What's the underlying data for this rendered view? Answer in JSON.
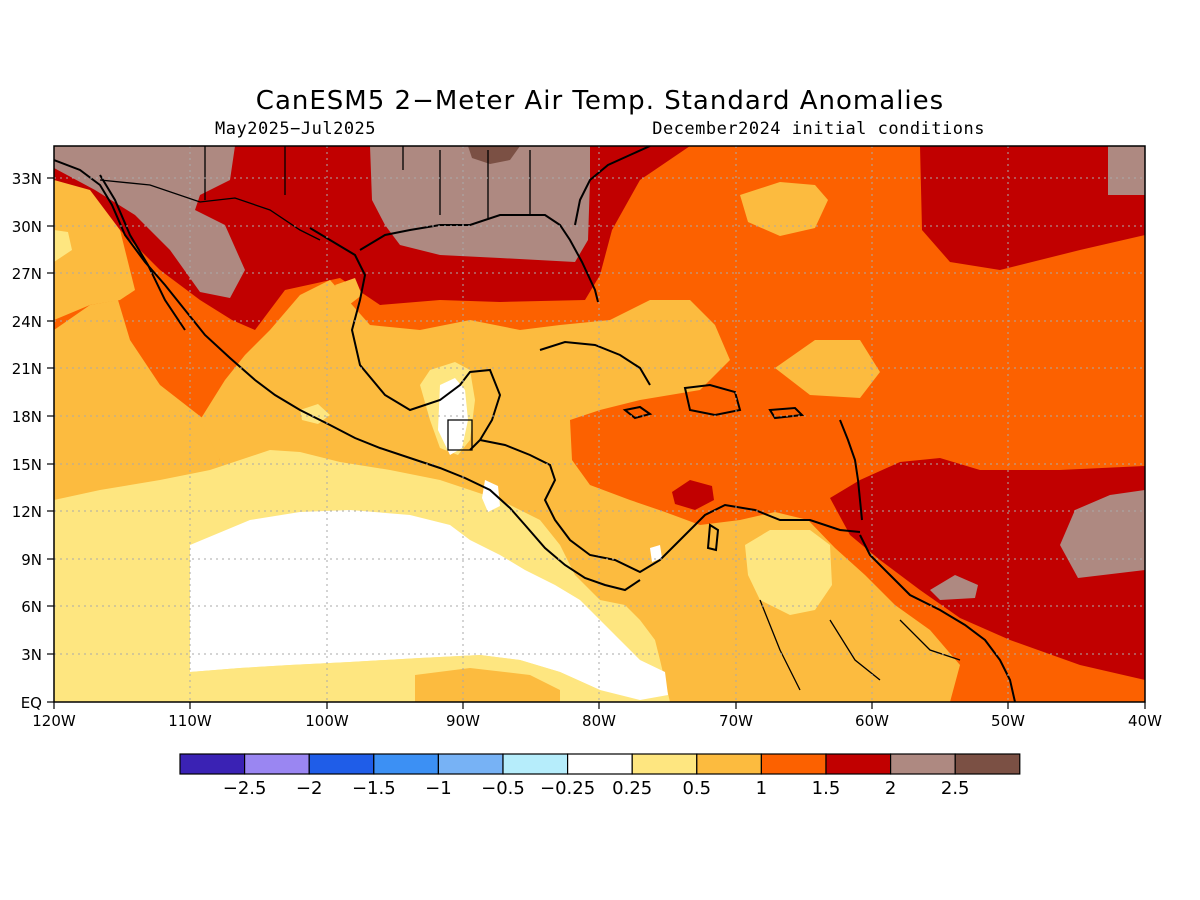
{
  "header": {
    "title": "CanESM5 2−Meter Air Temp. Standard Anomalies",
    "period": "May2025−Jul2025",
    "init": "December2024 initial conditions"
  },
  "map": {
    "lat_labels": [
      "33N",
      "30N",
      "27N",
      "24N",
      "21N",
      "18N",
      "15N",
      "12N",
      "9N",
      "6N",
      "3N",
      "EQ"
    ],
    "lon_labels": [
      "120W",
      "110W",
      "100W",
      "90W",
      "80W",
      "70W",
      "60W",
      "50W",
      "40W"
    ]
  },
  "legend": {
    "colors": [
      "#3a22b4",
      "#9a86f2",
      "#1f5de8",
      "#3c90f4",
      "#77b2f5",
      "#b6edfb",
      "#ffffff",
      "#fee680",
      "#fcbb3f",
      "#fc6100",
      "#c10000",
      "#ae8981",
      "#7b5044"
    ],
    "labels": [
      "−2.5",
      "−2",
      "−1.5",
      "−1",
      "−0.5",
      "−0.25",
      "0.25",
      "0.5",
      "1",
      "1.5",
      "2",
      "2.5"
    ]
  },
  "palette": {
    "white": "#ffffff",
    "light_yellow": "#fee680",
    "yellow_orange": "#fcbb3f",
    "orange": "#fc6100",
    "red": "#c10000",
    "taupe": "#ae8981",
    "brown": "#7b5044"
  }
}
